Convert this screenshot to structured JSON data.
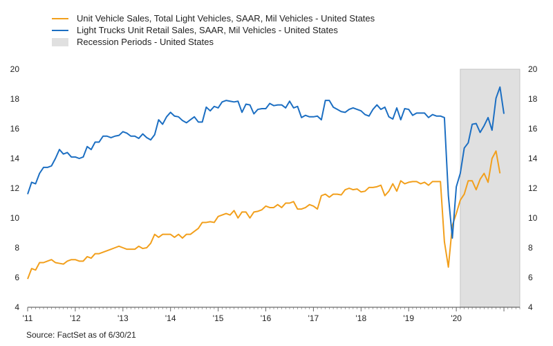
{
  "chart_data": {
    "type": "line",
    "legend_placement": "top-left",
    "legend": [
      {
        "label": "Unit Vehicle Sales, Total Light Vehicles, SAAR, Mil Vehicles - United States",
        "color": "#F29F1B",
        "kind": "line"
      },
      {
        "label": "Light Trucks Unit Retail Sales, SAAR, Mil Vehicles - United States",
        "color": "#1B6EC2",
        "kind": "line"
      },
      {
        "label": "Recession Periods - United States",
        "color": "#E0E0E0",
        "kind": "box"
      }
    ],
    "ylim": [
      4,
      20
    ],
    "yticks": [
      "4",
      "6",
      "8",
      "10",
      "12",
      "14",
      "16",
      "18",
      "20"
    ],
    "x_start": "2011-01",
    "x_end": "2021-05",
    "xticks": [
      {
        "label": "'11",
        "date": "2011-01"
      },
      {
        "label": "'12",
        "date": "2012-01"
      },
      {
        "label": "'13",
        "date": "2013-01"
      },
      {
        "label": "'14",
        "date": "2014-01"
      },
      {
        "label": "'15",
        "date": "2015-01"
      },
      {
        "label": "'16",
        "date": "2016-01"
      },
      {
        "label": "'17",
        "date": "2017-01"
      },
      {
        "label": "'18",
        "date": "2018-01"
      },
      {
        "label": "'19",
        "date": "2019-01"
      },
      {
        "label": "'20",
        "date": "2020-01"
      }
    ],
    "recession": {
      "start": "2020-02",
      "end": "2021-05",
      "color": "#E0E0E0"
    },
    "series": [
      {
        "name": "Unit Vehicle Sales, Total Light Vehicles, SAAR, Mil Vehicles - United States",
        "color": "#F29F1B",
        "points": [
          [
            "2011-01",
            5.9
          ],
          [
            "2011-02",
            6.6
          ],
          [
            "2011-03",
            6.5
          ],
          [
            "2011-04",
            7.0
          ],
          [
            "2011-05",
            7.0
          ],
          [
            "2011-06",
            7.1
          ],
          [
            "2011-07",
            7.2
          ],
          [
            "2011-08",
            7.0
          ],
          [
            "2011-09",
            6.95
          ],
          [
            "2011-10",
            6.9
          ],
          [
            "2011-11",
            7.1
          ],
          [
            "2011-12",
            7.2
          ],
          [
            "2012-01",
            7.2
          ],
          [
            "2012-02",
            7.1
          ],
          [
            "2012-03",
            7.1
          ],
          [
            "2012-04",
            7.4
          ],
          [
            "2012-05",
            7.3
          ],
          [
            "2012-06",
            7.6
          ],
          [
            "2012-07",
            7.6
          ],
          [
            "2012-08",
            7.7
          ],
          [
            "2012-09",
            7.8
          ],
          [
            "2012-10",
            7.9
          ],
          [
            "2012-11",
            8.0
          ],
          [
            "2012-12",
            8.1
          ],
          [
            "2013-01",
            8.0
          ],
          [
            "2013-02",
            7.9
          ],
          [
            "2013-03",
            7.9
          ],
          [
            "2013-04",
            7.9
          ],
          [
            "2013-05",
            8.1
          ],
          [
            "2013-06",
            7.95
          ],
          [
            "2013-07",
            8.0
          ],
          [
            "2013-08",
            8.3
          ],
          [
            "2013-09",
            8.9
          ],
          [
            "2013-10",
            8.7
          ],
          [
            "2013-11",
            8.9
          ],
          [
            "2013-12",
            8.9
          ],
          [
            "2014-01",
            8.9
          ],
          [
            "2014-02",
            8.7
          ],
          [
            "2014-03",
            8.9
          ],
          [
            "2014-04",
            8.65
          ],
          [
            "2014-05",
            8.9
          ],
          [
            "2014-06",
            8.9
          ],
          [
            "2014-07",
            9.1
          ],
          [
            "2014-08",
            9.3
          ],
          [
            "2014-09",
            9.7
          ],
          [
            "2014-10",
            9.7
          ],
          [
            "2014-11",
            9.75
          ],
          [
            "2014-12",
            9.7
          ],
          [
            "2015-01",
            10.1
          ],
          [
            "2015-02",
            10.2
          ],
          [
            "2015-03",
            10.3
          ],
          [
            "2015-04",
            10.2
          ],
          [
            "2015-05",
            10.5
          ],
          [
            "2015-06",
            10.0
          ],
          [
            "2015-07",
            10.4
          ],
          [
            "2015-08",
            10.4
          ],
          [
            "2015-09",
            10.0
          ],
          [
            "2015-10",
            10.4
          ],
          [
            "2015-11",
            10.45
          ],
          [
            "2015-12",
            10.55
          ],
          [
            "2016-01",
            10.8
          ],
          [
            "2016-02",
            10.7
          ],
          [
            "2016-03",
            10.7
          ],
          [
            "2016-04",
            10.9
          ],
          [
            "2016-05",
            10.7
          ],
          [
            "2016-06",
            11.0
          ],
          [
            "2016-07",
            11.0
          ],
          [
            "2016-08",
            11.1
          ],
          [
            "2016-09",
            10.6
          ],
          [
            "2016-10",
            10.6
          ],
          [
            "2016-11",
            10.7
          ],
          [
            "2016-12",
            10.9
          ],
          [
            "2017-01",
            10.8
          ],
          [
            "2017-02",
            10.6
          ],
          [
            "2017-03",
            11.5
          ],
          [
            "2017-04",
            11.6
          ],
          [
            "2017-05",
            11.4
          ],
          [
            "2017-06",
            11.6
          ],
          [
            "2017-07",
            11.6
          ],
          [
            "2017-08",
            11.55
          ],
          [
            "2017-09",
            11.9
          ],
          [
            "2017-10",
            12.0
          ],
          [
            "2017-11",
            11.9
          ],
          [
            "2017-12",
            11.95
          ],
          [
            "2018-01",
            11.75
          ],
          [
            "2018-02",
            11.8
          ],
          [
            "2018-03",
            12.05
          ],
          [
            "2018-04",
            12.05
          ],
          [
            "2018-05",
            12.1
          ],
          [
            "2018-06",
            12.2
          ],
          [
            "2018-07",
            11.5
          ],
          [
            "2018-08",
            11.8
          ],
          [
            "2018-09",
            12.3
          ],
          [
            "2018-10",
            11.8
          ],
          [
            "2018-11",
            12.5
          ],
          [
            "2018-12",
            12.3
          ],
          [
            "2019-01",
            12.4
          ],
          [
            "2019-02",
            12.45
          ],
          [
            "2019-03",
            12.45
          ],
          [
            "2019-04",
            12.3
          ],
          [
            "2019-05",
            12.4
          ],
          [
            "2019-06",
            12.2
          ],
          [
            "2019-07",
            12.45
          ],
          [
            "2019-08",
            12.45
          ],
          [
            "2019-09",
            12.45
          ],
          [
            "2019-10",
            8.4
          ],
          [
            "2019-11",
            6.7
          ],
          [
            "2019-12",
            9.5
          ],
          [
            "2020-01",
            10.3
          ],
          [
            "2020-02",
            11.2
          ],
          [
            "2020-03",
            11.6
          ],
          [
            "2020-04",
            12.5
          ],
          [
            "2020-05",
            12.5
          ],
          [
            "2020-06",
            11.9
          ],
          [
            "2020-07",
            12.6
          ],
          [
            "2020-08",
            13.0
          ],
          [
            "2020-09",
            12.4
          ],
          [
            "2020-10",
            14.0
          ],
          [
            "2020-11",
            14.5
          ],
          [
            "2020-12",
            13.0
          ]
        ]
      },
      {
        "name": "Light Trucks Unit Retail Sales, SAAR, Mil Vehicles - United States",
        "color": "#1B6EC2",
        "points": [
          [
            "2011-01",
            11.6
          ],
          [
            "2011-02",
            12.4
          ],
          [
            "2011-03",
            12.3
          ],
          [
            "2011-04",
            13.0
          ],
          [
            "2011-05",
            13.4
          ],
          [
            "2011-06",
            13.4
          ],
          [
            "2011-07",
            13.5
          ],
          [
            "2011-08",
            14.0
          ],
          [
            "2011-09",
            14.6
          ],
          [
            "2011-10",
            14.3
          ],
          [
            "2011-11",
            14.4
          ],
          [
            "2011-12",
            14.1
          ],
          [
            "2012-01",
            14.1
          ],
          [
            "2012-02",
            14.0
          ],
          [
            "2012-03",
            14.1
          ],
          [
            "2012-04",
            14.8
          ],
          [
            "2012-05",
            14.6
          ],
          [
            "2012-06",
            15.1
          ],
          [
            "2012-07",
            15.1
          ],
          [
            "2012-08",
            15.5
          ],
          [
            "2012-09",
            15.5
          ],
          [
            "2012-10",
            15.4
          ],
          [
            "2012-11",
            15.5
          ],
          [
            "2012-12",
            15.55
          ],
          [
            "2013-01",
            15.8
          ],
          [
            "2013-02",
            15.7
          ],
          [
            "2013-03",
            15.5
          ],
          [
            "2013-04",
            15.5
          ],
          [
            "2013-05",
            15.35
          ],
          [
            "2013-06",
            15.65
          ],
          [
            "2013-07",
            15.4
          ],
          [
            "2013-08",
            15.25
          ],
          [
            "2013-09",
            15.6
          ],
          [
            "2013-10",
            16.6
          ],
          [
            "2013-11",
            16.3
          ],
          [
            "2013-12",
            16.8
          ],
          [
            "2014-01",
            17.1
          ],
          [
            "2014-02",
            16.85
          ],
          [
            "2014-03",
            16.8
          ],
          [
            "2014-04",
            16.55
          ],
          [
            "2014-05",
            16.4
          ],
          [
            "2014-06",
            16.6
          ],
          [
            "2014-07",
            16.8
          ],
          [
            "2014-08",
            16.45
          ],
          [
            "2014-09",
            16.45
          ],
          [
            "2014-10",
            17.45
          ],
          [
            "2014-11",
            17.2
          ],
          [
            "2014-12",
            17.5
          ],
          [
            "2015-01",
            17.4
          ],
          [
            "2015-02",
            17.8
          ],
          [
            "2015-03",
            17.9
          ],
          [
            "2015-04",
            17.85
          ],
          [
            "2015-05",
            17.8
          ],
          [
            "2015-06",
            17.85
          ],
          [
            "2015-07",
            17.1
          ],
          [
            "2015-08",
            17.65
          ],
          [
            "2015-09",
            17.6
          ],
          [
            "2015-10",
            17.0
          ],
          [
            "2015-11",
            17.3
          ],
          [
            "2015-12",
            17.35
          ],
          [
            "2016-01",
            17.35
          ],
          [
            "2016-02",
            17.7
          ],
          [
            "2016-03",
            17.55
          ],
          [
            "2016-04",
            17.6
          ],
          [
            "2016-05",
            17.6
          ],
          [
            "2016-06",
            17.4
          ],
          [
            "2016-07",
            17.85
          ],
          [
            "2016-08",
            17.4
          ],
          [
            "2016-09",
            17.5
          ],
          [
            "2016-10",
            16.75
          ],
          [
            "2016-11",
            16.9
          ],
          [
            "2016-12",
            16.8
          ],
          [
            "2017-01",
            16.8
          ],
          [
            "2017-02",
            16.85
          ],
          [
            "2017-03",
            16.6
          ],
          [
            "2017-04",
            17.9
          ],
          [
            "2017-05",
            17.9
          ],
          [
            "2017-06",
            17.45
          ],
          [
            "2017-07",
            17.3
          ],
          [
            "2017-08",
            17.15
          ],
          [
            "2017-09",
            17.1
          ],
          [
            "2017-10",
            17.3
          ],
          [
            "2017-11",
            17.4
          ],
          [
            "2017-12",
            17.3
          ],
          [
            "2018-01",
            17.2
          ],
          [
            "2018-02",
            16.95
          ],
          [
            "2018-03",
            16.85
          ],
          [
            "2018-04",
            17.3
          ],
          [
            "2018-05",
            17.6
          ],
          [
            "2018-06",
            17.3
          ],
          [
            "2018-07",
            17.45
          ],
          [
            "2018-08",
            16.8
          ],
          [
            "2018-09",
            16.65
          ],
          [
            "2018-10",
            17.4
          ],
          [
            "2018-11",
            16.6
          ],
          [
            "2018-12",
            17.35
          ],
          [
            "2019-01",
            17.3
          ],
          [
            "2019-02",
            16.9
          ],
          [
            "2019-03",
            17.05
          ],
          [
            "2019-04",
            17.05
          ],
          [
            "2019-05",
            17.05
          ],
          [
            "2019-06",
            16.75
          ],
          [
            "2019-07",
            16.95
          ],
          [
            "2019-08",
            16.85
          ],
          [
            "2019-09",
            16.85
          ],
          [
            "2019-10",
            16.75
          ],
          [
            "2019-11",
            11.5
          ],
          [
            "2019-12",
            8.65
          ],
          [
            "2020-01",
            12.1
          ],
          [
            "2020-02",
            13.0
          ],
          [
            "2020-03",
            14.7
          ],
          [
            "2020-04",
            15.05
          ],
          [
            "2020-05",
            16.3
          ],
          [
            "2020-06",
            16.35
          ],
          [
            "2020-07",
            15.75
          ],
          [
            "2020-08",
            16.2
          ],
          [
            "2020-09",
            16.75
          ],
          [
            "2020-10",
            15.9
          ],
          [
            "2020-11",
            18.05
          ],
          [
            "2020-12",
            18.8
          ],
          [
            "2021-01",
            17.0
          ]
        ]
      }
    ]
  },
  "source": "Source: FactSet as of 6/30/21"
}
